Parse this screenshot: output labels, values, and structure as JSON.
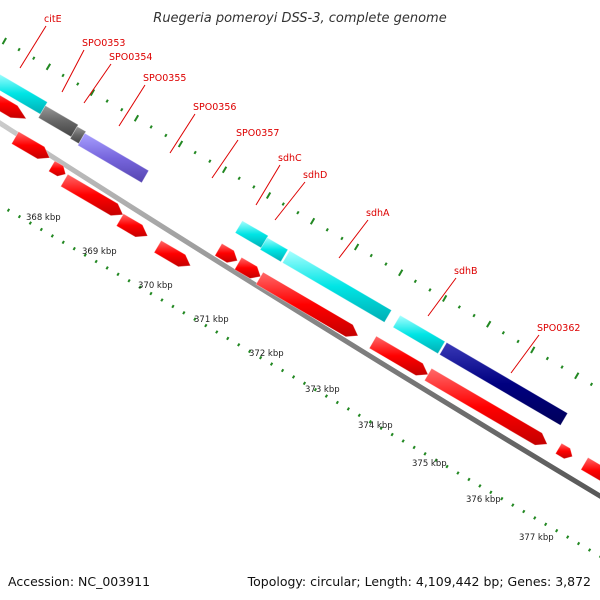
{
  "title": "Ruegeria pomeroyi DSS-3, complete genome",
  "footer": {
    "accession": "Accession: NC_003911",
    "summary": "Topology: circular; Length: 4,109,442 bp; Genes: 3,872"
  },
  "gene_labels": [
    "citE",
    "SPO0353",
    "SPO0354",
    "SPO0355",
    "SPO0356",
    "SPO0357",
    "sdhC",
    "sdhD",
    "sdhA",
    "sdhB",
    "SPO0362"
  ],
  "kbp_labels": [
    "368 kbp",
    "369 kbp",
    "370 kbp",
    "371 kbp",
    "372 kbp",
    "373 kbp",
    "374 kbp",
    "375 kbp",
    "376 kbp",
    "377 kbp"
  ],
  "colors": {
    "backbone": "#888888",
    "forward_cds": "#ff0000",
    "cyan_feature": "#00dddd",
    "gray_feature": "#666666",
    "purple_feature": "#7766dd",
    "navy_feature": "#000080",
    "tick_marks": "#228822",
    "label_text": "#dd0000"
  }
}
